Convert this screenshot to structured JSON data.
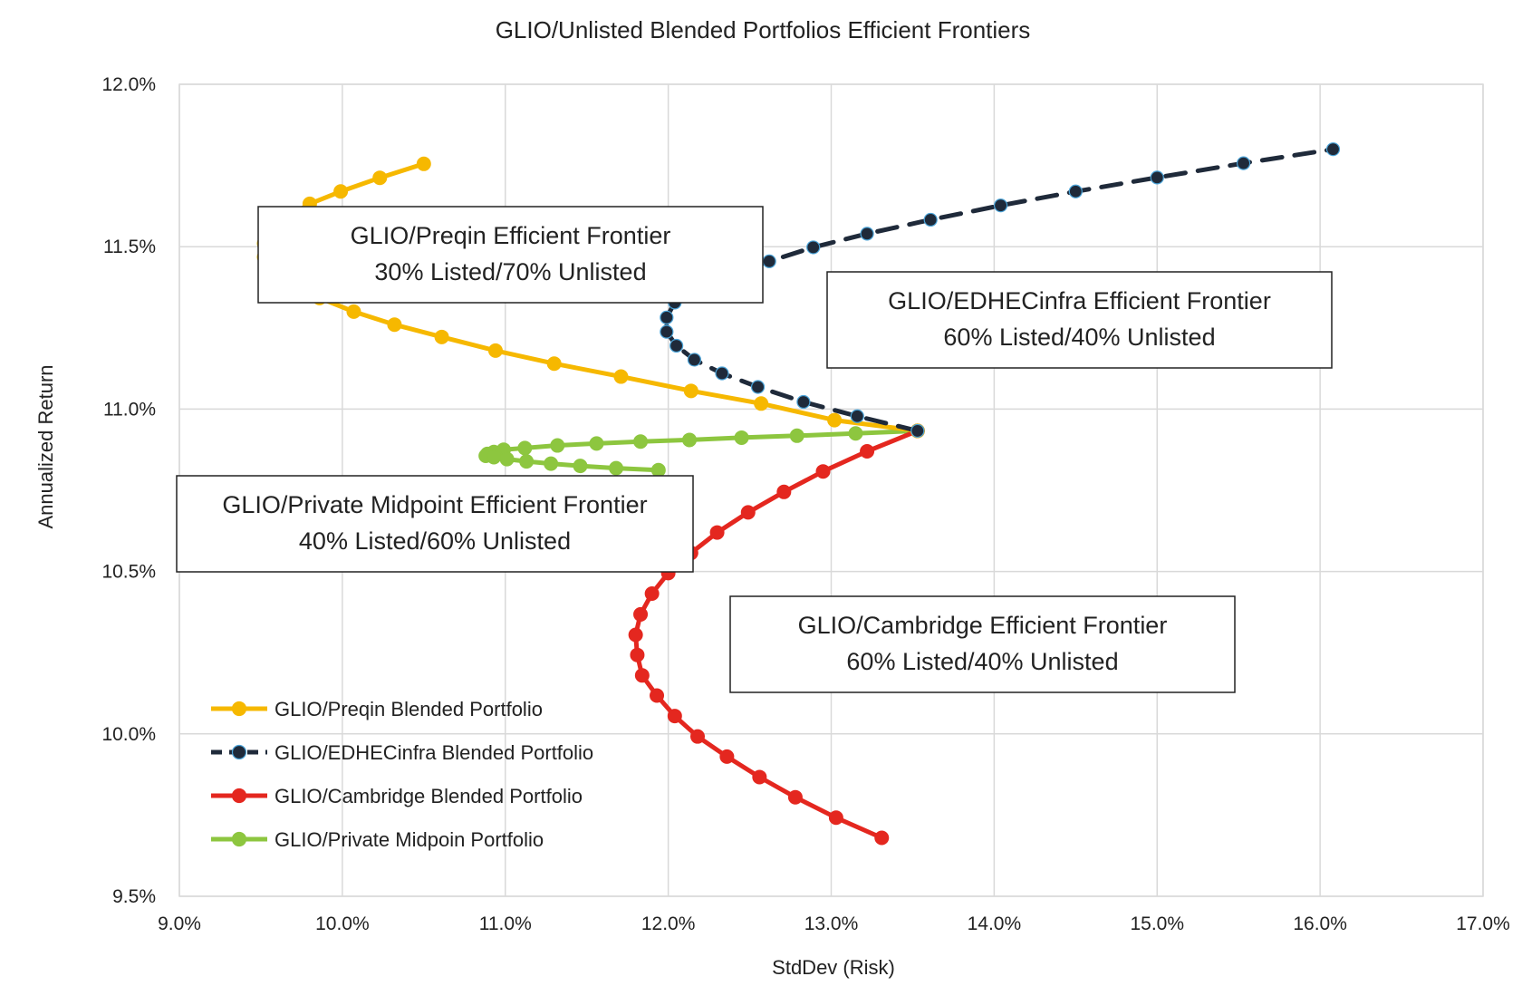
{
  "chart_data": {
    "type": "scatter",
    "title": "GLIO/Unlisted Blended Portfolios Efficient Frontiers",
    "xlabel": "StdDev (Risk)",
    "ylabel": "Annualized Return",
    "xlim": [
      0.09,
      0.17
    ],
    "ylim": [
      0.095,
      0.12
    ],
    "xticks": [
      0.09,
      0.1,
      0.11,
      0.12,
      0.13,
      0.14,
      0.15,
      0.16,
      0.17
    ],
    "xtick_labels": [
      "9.0%",
      "10.0%",
      "11.0%",
      "12.0%",
      "13.0%",
      "14.0%",
      "15.0%",
      "16.0%",
      "17.0%"
    ],
    "yticks": [
      0.095,
      0.1,
      0.105,
      0.11,
      0.115,
      0.12
    ],
    "ytick_labels": [
      "9.5%",
      "10.0%",
      "10.5%",
      "11.0%",
      "11.5%",
      "12.0%"
    ],
    "grid": true,
    "legend_position": "bottom-left",
    "series": [
      {
        "name": "GLIO/Preqin Blended Portfolio",
        "color": "#F6B800",
        "dash": false,
        "marker_fill": "#F6B800",
        "x": [
          0.1353,
          0.1302,
          0.1257,
          0.1214,
          0.1171,
          0.113,
          0.1094,
          0.1061,
          0.1032,
          0.1007,
          0.0986,
          0.0969,
          0.0958,
          0.0952,
          0.0952,
          0.0955,
          0.0966,
          0.098,
          0.0999,
          0.1023,
          0.105
        ],
        "y": [
          0.10933,
          0.10966,
          0.11017,
          0.11056,
          0.111,
          0.1114,
          0.1118,
          0.11222,
          0.1126,
          0.113,
          0.11342,
          0.11382,
          0.11425,
          0.11468,
          0.1151,
          0.11548,
          0.1159,
          0.11632,
          0.1167,
          0.11712,
          0.11755
        ]
      },
      {
        "name": "GLIO/EDHECinfra Blended Portfolio",
        "color": "#1F2A3A",
        "dash": true,
        "marker_fill": "#1F2A3A",
        "x": [
          0.1353,
          0.1316,
          0.1283,
          0.1255,
          0.1233,
          0.1216,
          0.1205,
          0.1199,
          0.1199,
          0.1204,
          0.1218,
          0.1236,
          0.1262,
          0.1289,
          0.1322,
          0.1361,
          0.1404,
          0.145,
          0.15,
          0.1553,
          0.1608
        ],
        "y": [
          0.10933,
          0.10978,
          0.11022,
          0.11068,
          0.1111,
          0.11152,
          0.11195,
          0.11238,
          0.11282,
          0.11328,
          0.11368,
          0.11412,
          0.11455,
          0.11498,
          0.1154,
          0.11583,
          0.11627,
          0.1167,
          0.11713,
          0.11757,
          0.118
        ]
      },
      {
        "name": "GLIO/Cambridge Blended Portfolio",
        "color": "#E4271F",
        "dash": false,
        "marker_fill": "#E4271F",
        "x": [
          0.1353,
          0.1322,
          0.1295,
          0.1271,
          0.1249,
          0.123,
          0.1214,
          0.12,
          0.119,
          0.1183,
          0.118,
          0.1181,
          0.1184,
          0.1193,
          0.1204,
          0.1218,
          0.1236,
          0.1256,
          0.1278,
          0.1303,
          0.1331
        ],
        "y": [
          0.10933,
          0.1087,
          0.10808,
          0.10745,
          0.10682,
          0.1062,
          0.10557,
          0.10495,
          0.10432,
          0.10368,
          0.10305,
          0.10243,
          0.1018,
          0.10118,
          0.10055,
          0.09992,
          0.0993,
          0.09867,
          0.09805,
          0.09742,
          0.0968
        ]
      },
      {
        "name": "GLIO/Private Midpoin Portfolio",
        "color": "#8DC63F",
        "dash": false,
        "marker_fill": "#8DC63F",
        "x": [
          0.1353,
          0.1315,
          0.1279,
          0.1245,
          0.1213,
          0.1183,
          0.1156,
          0.1132,
          0.1112,
          0.1099,
          0.1093,
          0.1089,
          0.1088,
          0.1093,
          0.1101,
          0.1113,
          0.1128,
          0.1146,
          0.1168,
          0.1194
        ],
        "y": [
          0.10933,
          0.10925,
          0.10918,
          0.10912,
          0.10905,
          0.109,
          0.10894,
          0.10888,
          0.1088,
          0.10875,
          0.10868,
          0.10862,
          0.10856,
          0.10852,
          0.10846,
          0.10839,
          0.10832,
          0.10825,
          0.10818,
          0.10812
        ]
      }
    ],
    "annotations": [
      {
        "id": "preqin",
        "lines": [
          "GLIO/Preqin Efficient Frontier",
          "30% Listed/70% Unlisted"
        ]
      },
      {
        "id": "edhec",
        "lines": [
          "GLIO/EDHECinfra Efficient Frontier",
          "60% Listed/40% Unlisted"
        ]
      },
      {
        "id": "private",
        "lines": [
          "GLIO/Private Midpoint Efficient Frontier",
          "40% Listed/60% Unlisted"
        ]
      },
      {
        "id": "cambridge",
        "lines": [
          "GLIO/Cambridge Efficient Frontier",
          "60% Listed/40% Unlisted"
        ]
      }
    ]
  }
}
